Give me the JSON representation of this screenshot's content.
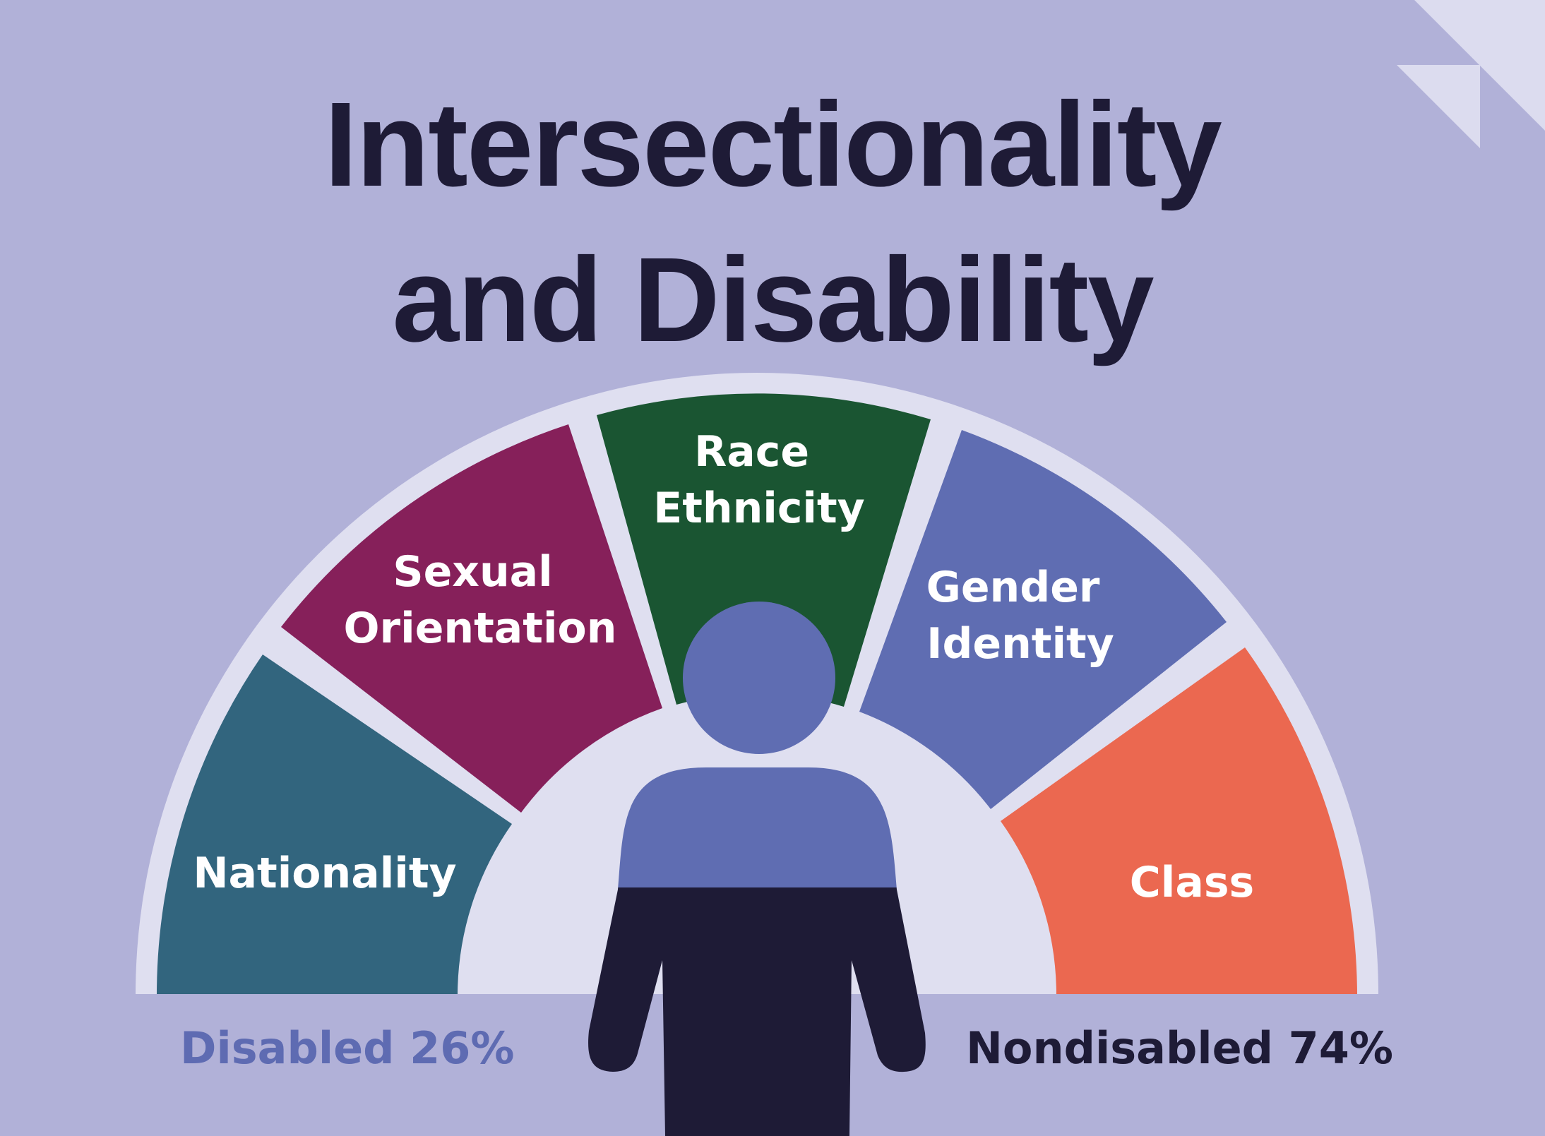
{
  "title": {
    "line1": "Intersectionality",
    "line2": "and Disability"
  },
  "segments": [
    {
      "key": "nationality",
      "lines": [
        "Nationality"
      ],
      "color": "#32657e"
    },
    {
      "key": "sexual_orientation",
      "lines": [
        "Sexual",
        "Orientation"
      ],
      "color": "#86205a"
    },
    {
      "key": "race_ethnicity",
      "lines": [
        "Race",
        "Ethnicity"
      ],
      "color": "#1a5532"
    },
    {
      "key": "gender_identity",
      "lines": [
        "Gender",
        "Identity"
      ],
      "color": "#5f6db2"
    },
    {
      "key": "class",
      "lines": [
        "Class"
      ],
      "color": "#eb6850"
    }
  ],
  "stats": {
    "disabled": {
      "label": "Disabled 26%",
      "value": 26,
      "color": "#5e6bb2"
    },
    "nondisabled": {
      "label": "Nondisabled 74%",
      "value": 74,
      "color": "#1e1b36"
    }
  },
  "figure": {
    "icon": "person-icon",
    "disabled_color": "#5f6db2",
    "nondisabled_color": "#1e1b36"
  },
  "colors": {
    "background": "#b1b1d8",
    "arc_backing": "#dfdff0",
    "corner_fold": "#dcdcef"
  }
}
